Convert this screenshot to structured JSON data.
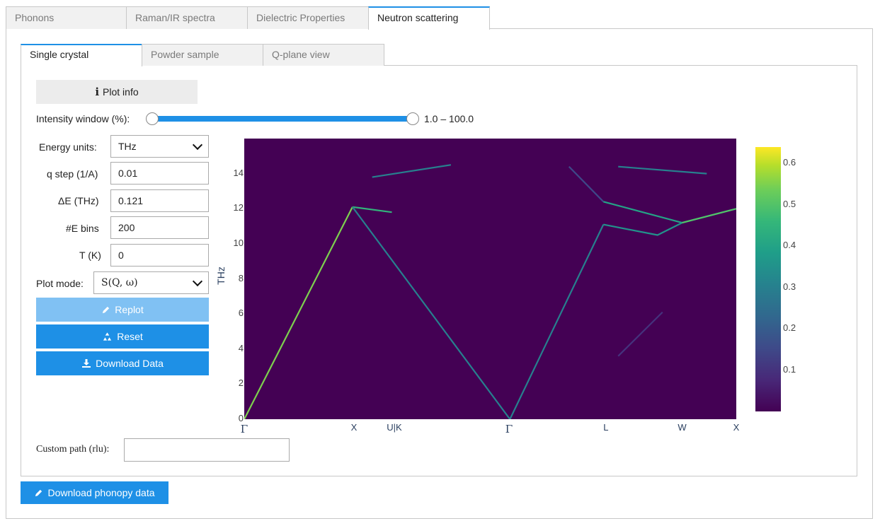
{
  "top_tabs": [
    {
      "label": "Phonons",
      "active": false
    },
    {
      "label": "Raman/IR spectra",
      "active": false
    },
    {
      "label": "Dielectric Properties",
      "active": false
    },
    {
      "label": "Neutron scattering",
      "active": true
    }
  ],
  "sub_tabs": [
    {
      "label": "Single crystal",
      "active": true
    },
    {
      "label": "Powder sample",
      "active": false
    },
    {
      "label": "Q-plane view",
      "active": false
    }
  ],
  "plot_info_label": "Plot info",
  "intensity_window": {
    "label": "Intensity window (%):",
    "value_text": "1.0 – 100.0",
    "min": 1.0,
    "max": 100.0
  },
  "fields": {
    "energy_units": {
      "label": "Energy units:",
      "value": "THz"
    },
    "q_step": {
      "label": "q step (1/A)",
      "value": "0.01"
    },
    "delta_e": {
      "label": "ΔE (THz)",
      "value": "0.121"
    },
    "e_bins": {
      "label": "#E bins",
      "value": "200"
    },
    "temperature": {
      "label": "T (K)",
      "value": "0"
    },
    "plot_mode": {
      "label": "Plot mode:",
      "value": "S(Q, ω)"
    }
  },
  "buttons": {
    "replot": "Replot",
    "reset": "Reset",
    "download_data": "Download Data",
    "download_phonopy": "Download phonopy data"
  },
  "custom_path": {
    "label": "Custom path (rlu):",
    "value": ""
  },
  "colors": {
    "accent": "#1e90e6",
    "accent_disabled": "#80c1f3",
    "plot_bg": "#440154"
  },
  "chart_data": {
    "type": "heatmap",
    "ylabel": "THz",
    "ylim": [
      0,
      16
    ],
    "yticks": [
      "0",
      "2",
      "4",
      "6",
      "8",
      "10",
      "12",
      "14"
    ],
    "x_tick_labels": [
      "Γ",
      "X",
      "U|K",
      "Γ",
      "L",
      "W",
      "X"
    ],
    "colorscale": "viridis",
    "colorbar_ticks": [
      "0.1",
      "0.2",
      "0.3",
      "0.4",
      "0.5",
      "0.6"
    ],
    "zlim": [
      0,
      0.64
    ],
    "branches": [
      {
        "points": [
          [
            0,
            0.0
          ],
          [
            0.22,
            12.1
          ]
        ],
        "intensity": 0.55
      },
      {
        "points": [
          [
            0.22,
            12.1
          ],
          [
            0.3,
            11.8
          ]
        ],
        "intensity": 0.45
      },
      {
        "points": [
          [
            0.22,
            12.1
          ],
          [
            0.54,
            0.0
          ]
        ],
        "intensity": 0.3
      },
      {
        "points": [
          [
            0.54,
            0.0
          ],
          [
            0.73,
            11.1
          ]
        ],
        "intensity": 0.3
      },
      {
        "points": [
          [
            0.73,
            11.1
          ],
          [
            0.84,
            10.5
          ],
          [
            0.89,
            11.2
          ],
          [
            1.0,
            12.0
          ]
        ],
        "intensity": 0.35
      },
      {
        "points": [
          [
            0.73,
            12.4
          ],
          [
            0.89,
            11.2
          ]
        ],
        "intensity": 0.4
      },
      {
        "points": [
          [
            0.89,
            11.2
          ],
          [
            1.0,
            12.0
          ]
        ],
        "intensity": 0.5
      },
      {
        "points": [
          [
            0.26,
            13.8
          ],
          [
            0.42,
            14.5
          ]
        ],
        "intensity": 0.3
      },
      {
        "points": [
          [
            0.76,
            14.4
          ],
          [
            0.94,
            14.0
          ]
        ],
        "intensity": 0.3
      },
      {
        "points": [
          [
            0.66,
            14.4
          ],
          [
            0.73,
            12.4
          ]
        ],
        "intensity": 0.15
      },
      {
        "points": [
          [
            0.76,
            3.6
          ],
          [
            0.85,
            6.1
          ]
        ],
        "intensity": 0.1
      }
    ]
  }
}
